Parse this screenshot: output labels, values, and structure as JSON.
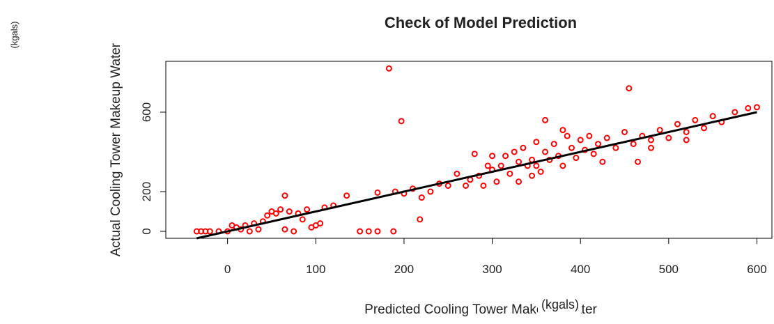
{
  "chart_data": {
    "type": "scatter",
    "title": "Check of Model Prediction",
    "x_label": "Predicted Cooling Tower Makeup Water",
    "y_label": "Actual Cooling Tower Makeup Water",
    "annotations": [
      "(kgals)",
      "(kgals)"
    ],
    "color": "#ff0000",
    "fit_line": {
      "x": [
        -35,
        600
      ],
      "y": [
        -35,
        600
      ],
      "color": "#000000"
    },
    "x": [
      183,
      197,
      455,
      360,
      150,
      160,
      170,
      188,
      218,
      65,
      170,
      135,
      105,
      95,
      -35,
      -30,
      -25,
      -20,
      -10,
      0,
      5,
      10,
      20,
      30,
      40,
      45,
      50,
      55,
      60,
      70,
      75,
      80,
      85,
      90,
      100,
      110,
      120,
      65,
      35,
      25,
      15,
      190,
      200,
      210,
      220,
      230,
      240,
      250,
      260,
      270,
      275,
      280,
      285,
      290,
      295,
      300,
      305,
      310,
      315,
      320,
      325,
      330,
      335,
      340,
      345,
      350,
      355,
      360,
      365,
      370,
      375,
      380,
      385,
      390,
      395,
      400,
      405,
      410,
      415,
      420,
      425,
      430,
      440,
      450,
      460,
      465,
      470,
      480,
      490,
      500,
      510,
      520,
      530,
      540,
      550,
      560,
      575,
      590,
      600,
      520,
      480,
      345,
      330,
      380,
      300,
      350
    ],
    "y": [
      820,
      555,
      720,
      560,
      0,
      0,
      0,
      0,
      60,
      180,
      195,
      180,
      40,
      20,
      0,
      0,
      0,
      0,
      0,
      0,
      30,
      20,
      30,
      40,
      50,
      80,
      100,
      90,
      110,
      100,
      0,
      90,
      60,
      110,
      30,
      120,
      130,
      10,
      10,
      0,
      10,
      200,
      190,
      215,
      170,
      200,
      240,
      230,
      290,
      230,
      260,
      390,
      280,
      230,
      330,
      310,
      250,
      330,
      380,
      290,
      400,
      350,
      420,
      330,
      360,
      450,
      300,
      400,
      360,
      440,
      380,
      330,
      480,
      420,
      370,
      460,
      410,
      480,
      390,
      440,
      350,
      470,
      420,
      500,
      440,
      350,
      480,
      460,
      510,
      470,
      540,
      500,
      560,
      520,
      580,
      550,
      600,
      620,
      625,
      460,
      420,
      280,
      250,
      510,
      380,
      330
    ],
    "xlim": [
      -70,
      617
    ],
    "ylim": [
      -35,
      856
    ],
    "xticks": [
      0,
      100,
      200,
      300,
      400,
      500,
      600
    ],
    "yticks": [
      0,
      200,
      600
    ]
  }
}
